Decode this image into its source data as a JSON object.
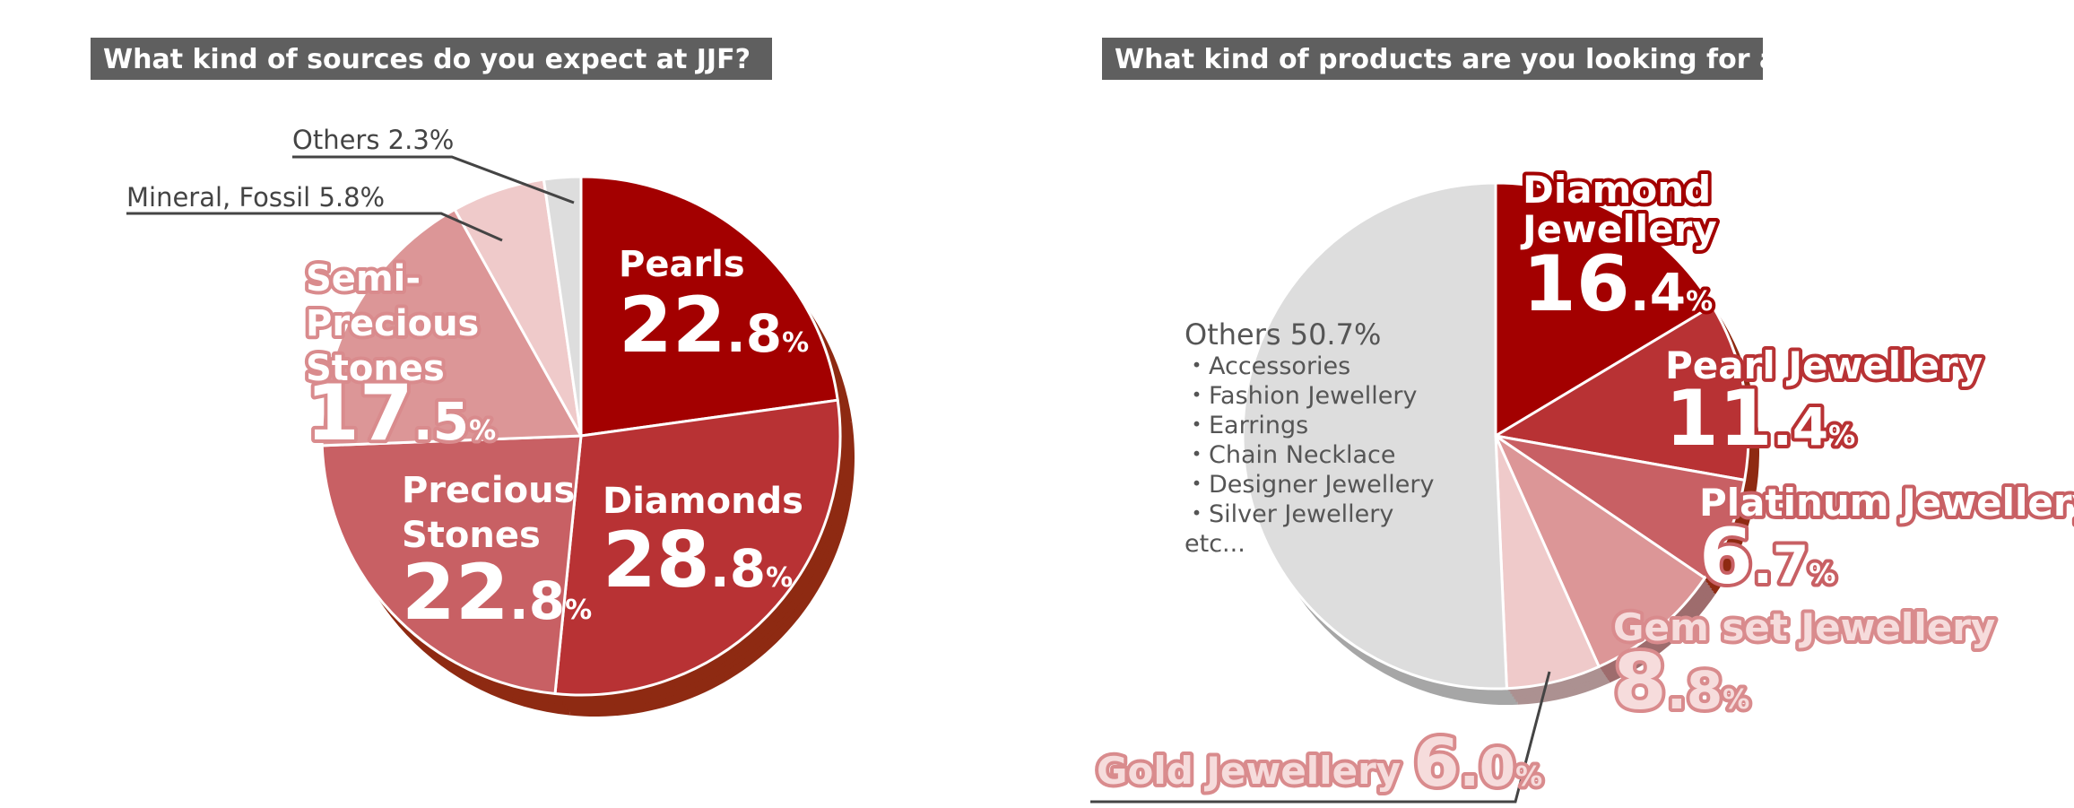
{
  "chart_data": [
    {
      "type": "pie",
      "title": "What kind of sources do you expect at JJF?",
      "categories": [
        "Pearls",
        "Diamonds",
        "Precious Stones",
        "Semi-Precious Stones",
        "Mineral, Fossil",
        "Others"
      ],
      "values": [
        22.8,
        28.8,
        22.8,
        17.5,
        5.8,
        2.3
      ],
      "value_labels": [
        "22.8%",
        "28.8%",
        "22.8%",
        "17.5%",
        "5.8%",
        "2.3%"
      ],
      "colors": [
        "#a30000",
        "#b83234",
        "#c86064",
        "#dc9697",
        "#efcaca",
        "#dddddd"
      ]
    },
    {
      "type": "pie",
      "title": "What kind of products are you looking for at JJF?",
      "categories": [
        "Diamond Jewellery",
        "Pearl Jewellery",
        "Platinum Jewellery",
        "Gem set Jewellery",
        "Gold Jewellery",
        "Others"
      ],
      "values": [
        16.4,
        11.4,
        6.7,
        8.8,
        6.0,
        50.7
      ],
      "value_labels": [
        "16.4%",
        "11.4%",
        "6.7%",
        "8.8%",
        "6.0%",
        "50.7%"
      ],
      "colors": [
        "#a30000",
        "#b83234",
        "#c86064",
        "#dc9697",
        "#efcaca",
        "#dddddd"
      ],
      "annotations": [
        "・Accessories",
        "・Fashion Jewellery",
        "・Earrings",
        "・Chain Necklace",
        "・Designer Jewellery",
        "・Silver Jewellery",
        "etc..."
      ]
    }
  ]
}
